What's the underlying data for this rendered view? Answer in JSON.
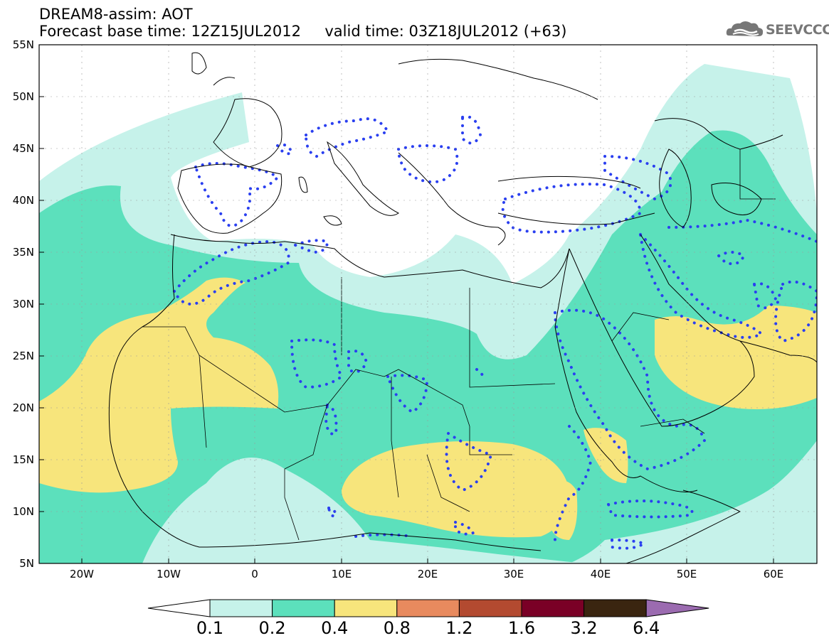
{
  "header": {
    "line1": "DREAM8-assim: AOT",
    "line2": "Forecast base time: 12Z15JUL2012     valid time: 03Z18JUL2012 (+63)"
  },
  "logo": {
    "text": "SEEVCCC",
    "icon": "cloud-logo-icon"
  },
  "axes": {
    "lat_ticks": [
      "55N",
      "50N",
      "45N",
      "40N",
      "35N",
      "30N",
      "25N",
      "20N",
      "15N",
      "10N",
      "5N"
    ],
    "lon_ticks": [
      "20W",
      "10W",
      "0",
      "10E",
      "20E",
      "30E",
      "40E",
      "50E",
      "60E"
    ],
    "lat_range": [
      5,
      55
    ],
    "lon_range": [
      -25,
      65
    ]
  },
  "colorbar": {
    "labels": [
      "0.1",
      "0.2",
      "0.4",
      "0.8",
      "1.2",
      "1.6",
      "3.2",
      "6.4"
    ],
    "colors": [
      "#ffffff",
      "#c6f2ea",
      "#5ce0bc",
      "#f7e57c",
      "#e88a5e",
      "#b34a30",
      "#7a0026",
      "#3a2510",
      "#9b6bb0"
    ]
  },
  "fields": {
    "contour_color": "#2a3ff0",
    "level_colors": {
      "l1": "#c6f2ea",
      "l2": "#5ce0bc",
      "l3": "#f7e57c"
    }
  }
}
